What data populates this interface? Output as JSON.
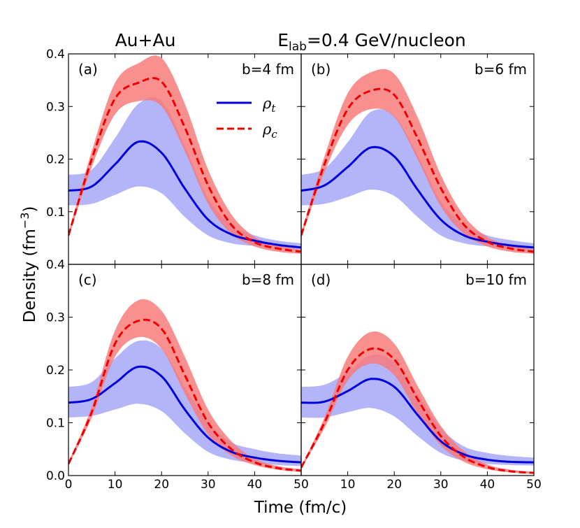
{
  "chart_data": {
    "type": "line",
    "title_left": "Au+Au",
    "title_right_main": "E",
    "title_right_sub": "lab",
    "title_right_rest": "=0.4 GeV/nucleon",
    "xlabel": "Time (fm/c)",
    "ylabel_main": "Density (fm",
    "ylabel_sup": "−3",
    "ylabel_close": ")",
    "xlim": [
      0,
      50
    ],
    "ylim": [
      0,
      0.4
    ],
    "x_ticks": [
      0,
      10,
      20,
      30,
      40,
      50
    ],
    "x_tick_labels_left": [
      "0",
      "10",
      "20",
      "30",
      "40",
      "50"
    ],
    "x_tick_labels_right": [
      "10",
      "20",
      "30",
      "40",
      "50"
    ],
    "y_ticks_top": [
      0.1,
      0.2,
      0.3,
      0.4
    ],
    "y_tick_labels_top": [
      "0.1",
      "0.2",
      "0.3",
      "0.4"
    ],
    "y_ticks_bottom": [
      0.0,
      0.1,
      0.2,
      0.3,
      0.4
    ],
    "y_tick_labels_bottom": [
      "0.0",
      "0.1",
      "0.2",
      "0.3",
      "0.4"
    ],
    "legend": [
      {
        "label_main": "ρ",
        "label_sub": "t",
        "color": "#0000dd",
        "style": "solid"
      },
      {
        "label_main": "ρ",
        "label_sub": "c",
        "color": "#ee0000",
        "style": "dashed"
      }
    ],
    "colors": {
      "rho_t_line": "#0000dd",
      "rho_t_band": "#b0b0f8",
      "rho_c_line": "#ee0000",
      "rho_c_band": "#f87878"
    },
    "panels": [
      {
        "id": "a",
        "label": "(a)",
        "impact": "b=4 fm",
        "x": [
          0,
          5,
          10,
          15,
          20,
          25,
          30,
          35,
          40,
          45,
          50
        ],
        "rho_t": [
          0.14,
          0.148,
          0.19,
          0.233,
          0.212,
          0.144,
          0.085,
          0.057,
          0.045,
          0.037,
          0.032
        ],
        "rho_t_low": [
          0.112,
          0.115,
          0.132,
          0.148,
          0.135,
          0.09,
          0.055,
          0.04,
          0.035,
          0.031,
          0.028
        ],
        "rho_t_high": [
          0.17,
          0.18,
          0.24,
          0.305,
          0.31,
          0.225,
          0.125,
          0.075,
          0.055,
          0.045,
          0.04
        ],
        "rho_c": [
          0.055,
          0.2,
          0.315,
          0.345,
          0.347,
          0.26,
          0.15,
          0.075,
          0.042,
          0.03,
          0.024
        ],
        "rho_c_low": [
          0.05,
          0.185,
          0.285,
          0.31,
          0.3,
          0.215,
          0.115,
          0.058,
          0.034,
          0.024,
          0.02
        ],
        "rho_c_high": [
          0.06,
          0.215,
          0.345,
          0.382,
          0.392,
          0.305,
          0.18,
          0.095,
          0.052,
          0.036,
          0.028
        ]
      },
      {
        "id": "b",
        "label": "(b)",
        "impact": "b=6 fm",
        "x": [
          0,
          5,
          10,
          15,
          20,
          25,
          30,
          35,
          40,
          45,
          50
        ],
        "rho_t": [
          0.14,
          0.15,
          0.185,
          0.222,
          0.205,
          0.142,
          0.085,
          0.055,
          0.043,
          0.036,
          0.032
        ],
        "rho_t_low": [
          0.112,
          0.115,
          0.128,
          0.142,
          0.13,
          0.09,
          0.055,
          0.04,
          0.034,
          0.03,
          0.028
        ],
        "rho_t_high": [
          0.17,
          0.182,
          0.232,
          0.29,
          0.282,
          0.208,
          0.12,
          0.075,
          0.055,
          0.046,
          0.04
        ],
        "rho_c": [
          0.055,
          0.19,
          0.295,
          0.33,
          0.322,
          0.24,
          0.145,
          0.075,
          0.043,
          0.03,
          0.024
        ],
        "rho_c_low": [
          0.05,
          0.175,
          0.265,
          0.295,
          0.28,
          0.2,
          0.11,
          0.058,
          0.034,
          0.024,
          0.02
        ],
        "rho_c_high": [
          0.06,
          0.205,
          0.325,
          0.365,
          0.362,
          0.28,
          0.17,
          0.092,
          0.052,
          0.036,
          0.028
        ]
      },
      {
        "id": "c",
        "label": "(c)",
        "impact": "b=8 fm",
        "x": [
          0,
          5,
          10,
          15,
          20,
          25,
          30,
          35,
          40,
          45,
          50
        ],
        "rho_t": [
          0.138,
          0.145,
          0.175,
          0.206,
          0.188,
          0.125,
          0.072,
          0.045,
          0.034,
          0.028,
          0.025
        ],
        "rho_t_low": [
          0.11,
          0.113,
          0.125,
          0.136,
          0.122,
          0.08,
          0.045,
          0.03,
          0.024,
          0.02,
          0.018
        ],
        "rho_t_high": [
          0.168,
          0.177,
          0.222,
          0.255,
          0.24,
          0.168,
          0.1,
          0.063,
          0.05,
          0.042,
          0.038
        ],
        "rho_c": [
          0.022,
          0.12,
          0.25,
          0.293,
          0.278,
          0.19,
          0.1,
          0.05,
          0.025,
          0.014,
          0.009
        ],
        "rho_c_low": [
          0.02,
          0.11,
          0.225,
          0.262,
          0.24,
          0.155,
          0.078,
          0.038,
          0.02,
          0.011,
          0.007
        ],
        "rho_c_high": [
          0.025,
          0.13,
          0.275,
          0.332,
          0.312,
          0.225,
          0.125,
          0.065,
          0.032,
          0.018,
          0.012
        ]
      },
      {
        "id": "d",
        "label": "(d)",
        "impact": "b=10 fm",
        "x": [
          0,
          5,
          10,
          15,
          20,
          25,
          30,
          35,
          40,
          45,
          50
        ],
        "rho_t": [
          0.138,
          0.14,
          0.16,
          0.183,
          0.168,
          0.115,
          0.065,
          0.04,
          0.03,
          0.026,
          0.025
        ],
        "rho_t_low": [
          0.11,
          0.11,
          0.12,
          0.128,
          0.112,
          0.075,
          0.043,
          0.028,
          0.022,
          0.02,
          0.019
        ],
        "rho_t_high": [
          0.168,
          0.172,
          0.196,
          0.228,
          0.215,
          0.155,
          0.09,
          0.055,
          0.043,
          0.037,
          0.034
        ],
        "rho_c": [
          0.015,
          0.1,
          0.2,
          0.24,
          0.22,
          0.145,
          0.075,
          0.035,
          0.016,
          0.008,
          0.005
        ],
        "rho_c_low": [
          0.013,
          0.09,
          0.18,
          0.212,
          0.19,
          0.118,
          0.057,
          0.026,
          0.012,
          0.006,
          0.003
        ],
        "rho_c_high": [
          0.017,
          0.11,
          0.225,
          0.272,
          0.25,
          0.17,
          0.094,
          0.046,
          0.021,
          0.011,
          0.007
        ]
      }
    ]
  }
}
